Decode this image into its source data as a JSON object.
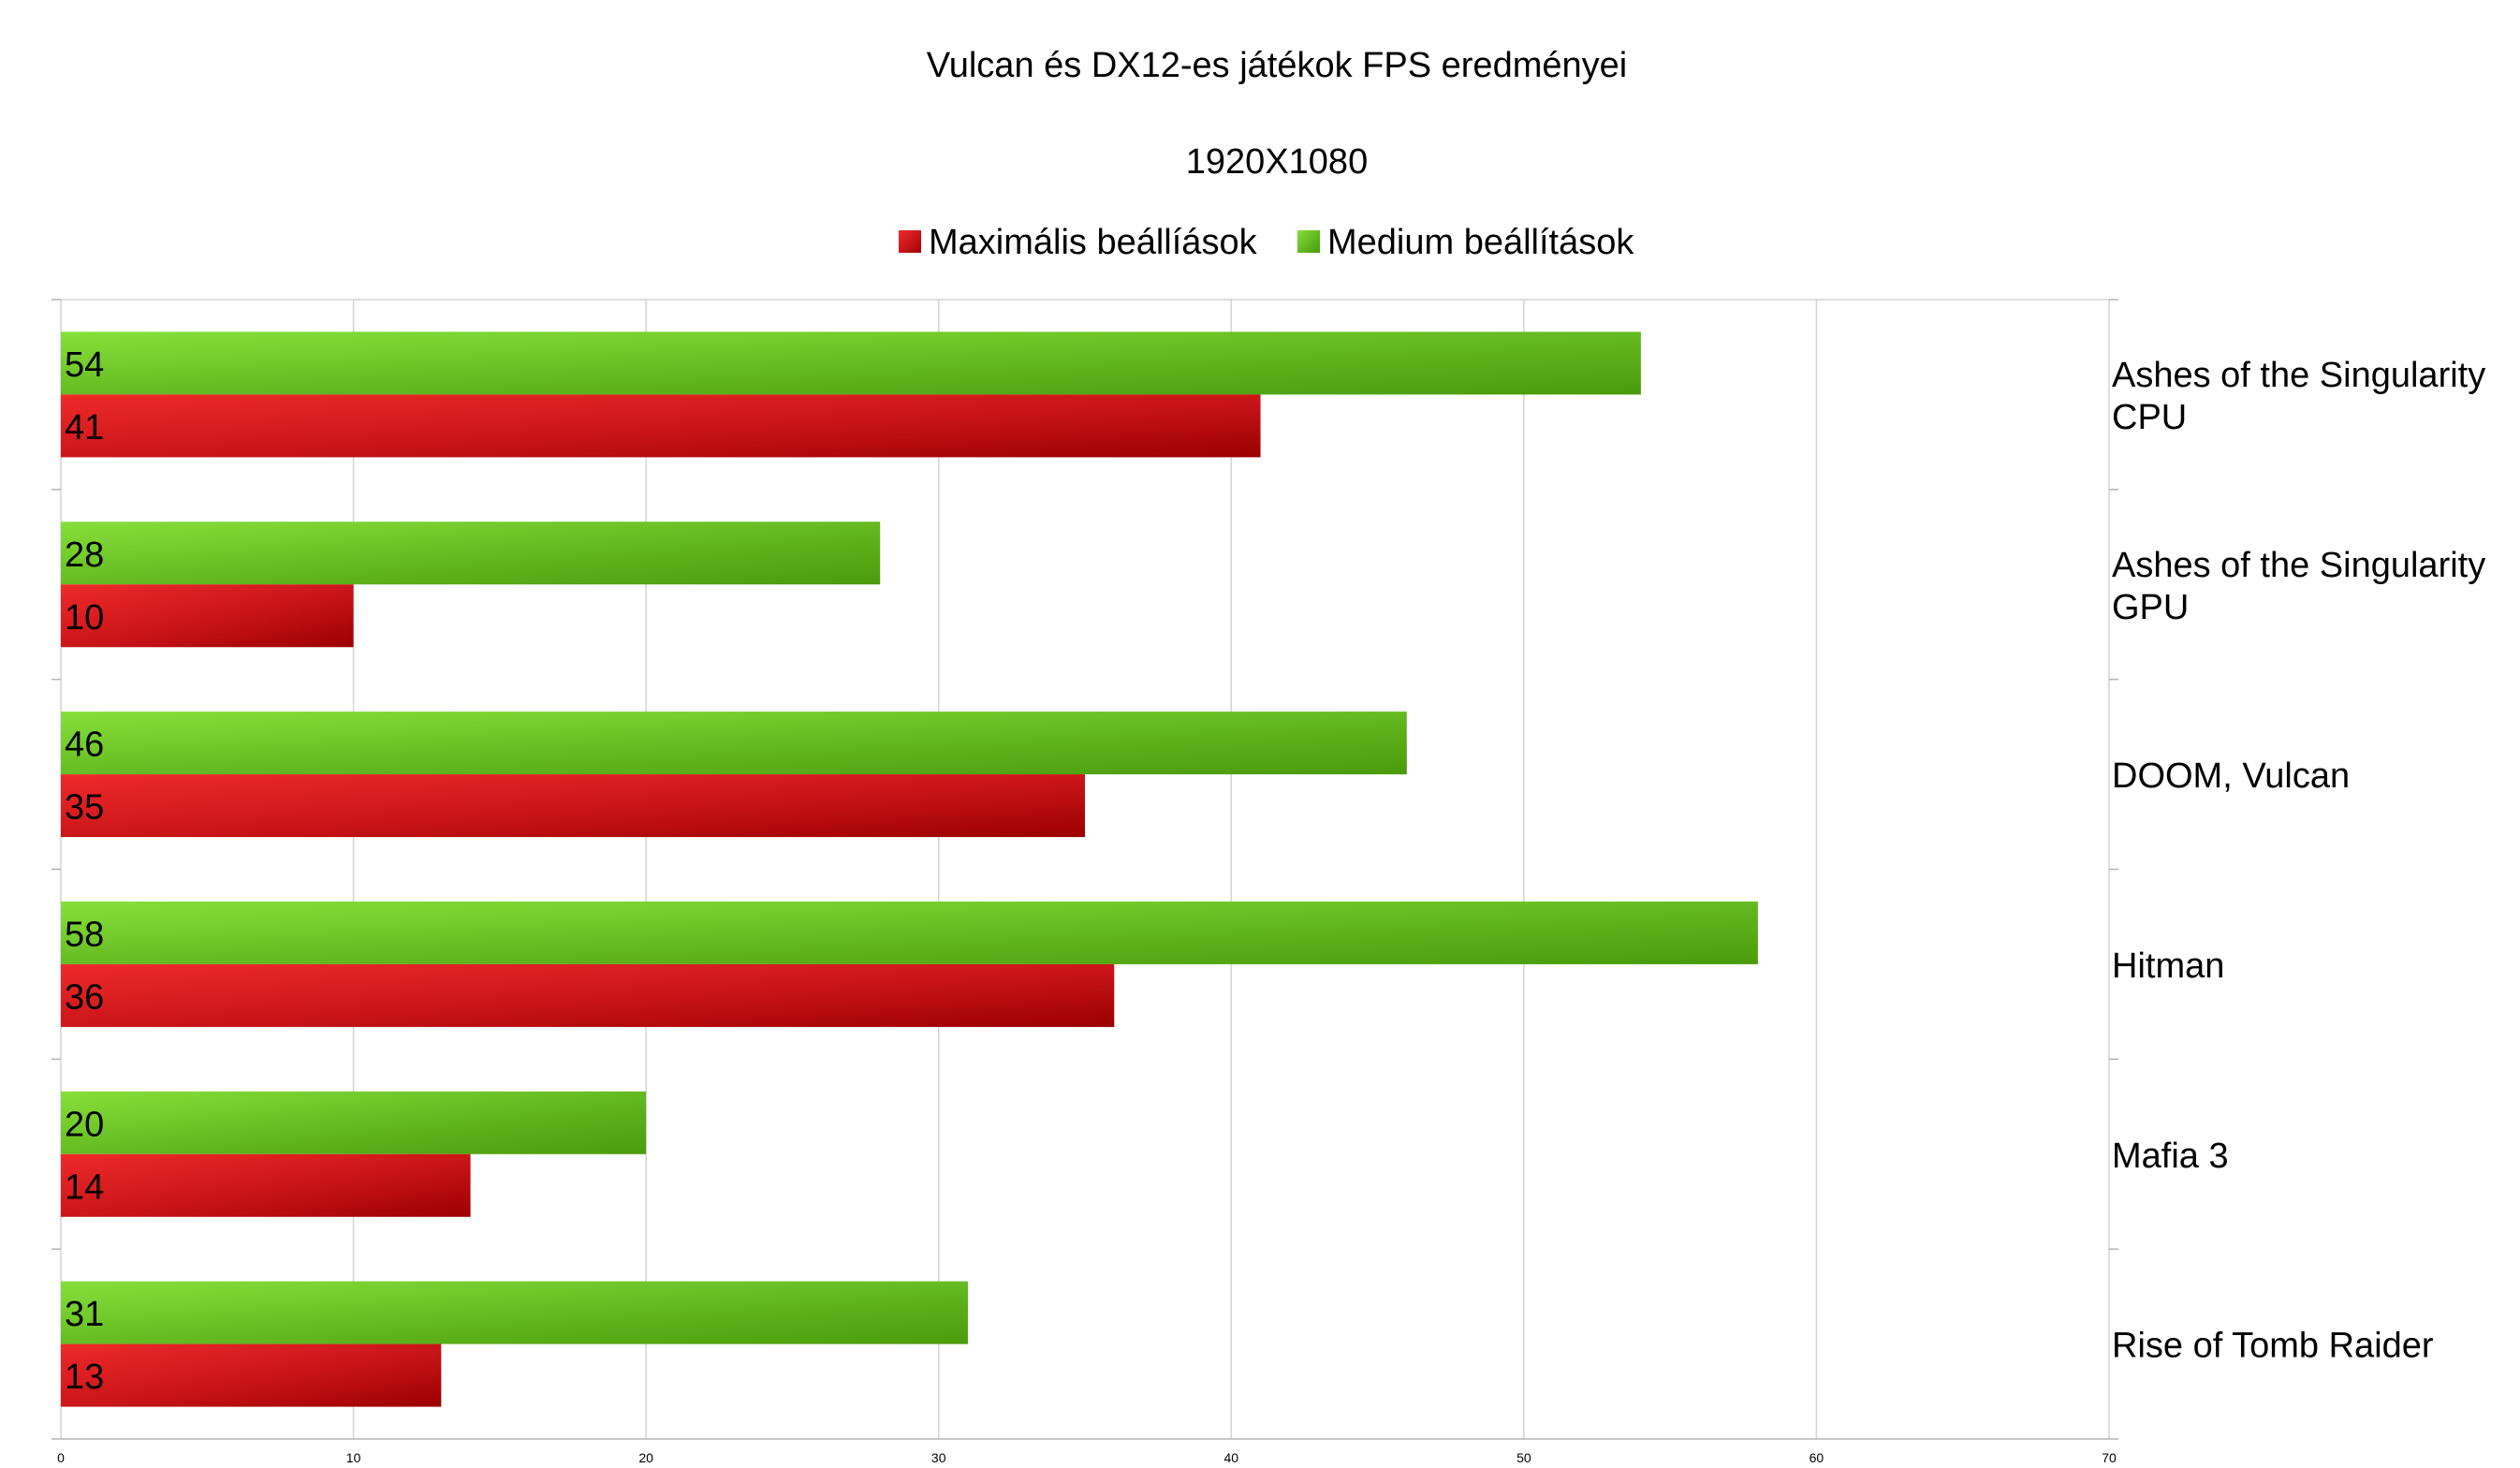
{
  "chart_data": {
    "type": "bar",
    "orientation": "horizontal",
    "title": "Vulcan és DX12-es játékok FPS eredményei",
    "subtitle": "1920X1080",
    "categories": [
      [
        "Ashes of the Singularity",
        "CPU"
      ],
      [
        "Ashes of the Singularity",
        "GPU"
      ],
      [
        "DOOM, Vulcan"
      ],
      [
        "Hitman"
      ],
      [
        "Mafia 3"
      ],
      [
        "Rise of Tomb Raider"
      ]
    ],
    "series": [
      {
        "name": "Maximális beállíások",
        "values": [
          41,
          10,
          35,
          36,
          14,
          13
        ],
        "color": "#c0161b"
      },
      {
        "name": "Medium beállítások",
        "values": [
          54,
          28,
          46,
          58,
          20,
          31
        ],
        "color": "#5ab521"
      }
    ],
    "xlim": [
      0,
      70
    ],
    "xticks": [
      0,
      10,
      20,
      30,
      40,
      50,
      60,
      70
    ],
    "grid": true,
    "legend": "top-center",
    "category_axis_side": "right",
    "data_labels": true
  }
}
